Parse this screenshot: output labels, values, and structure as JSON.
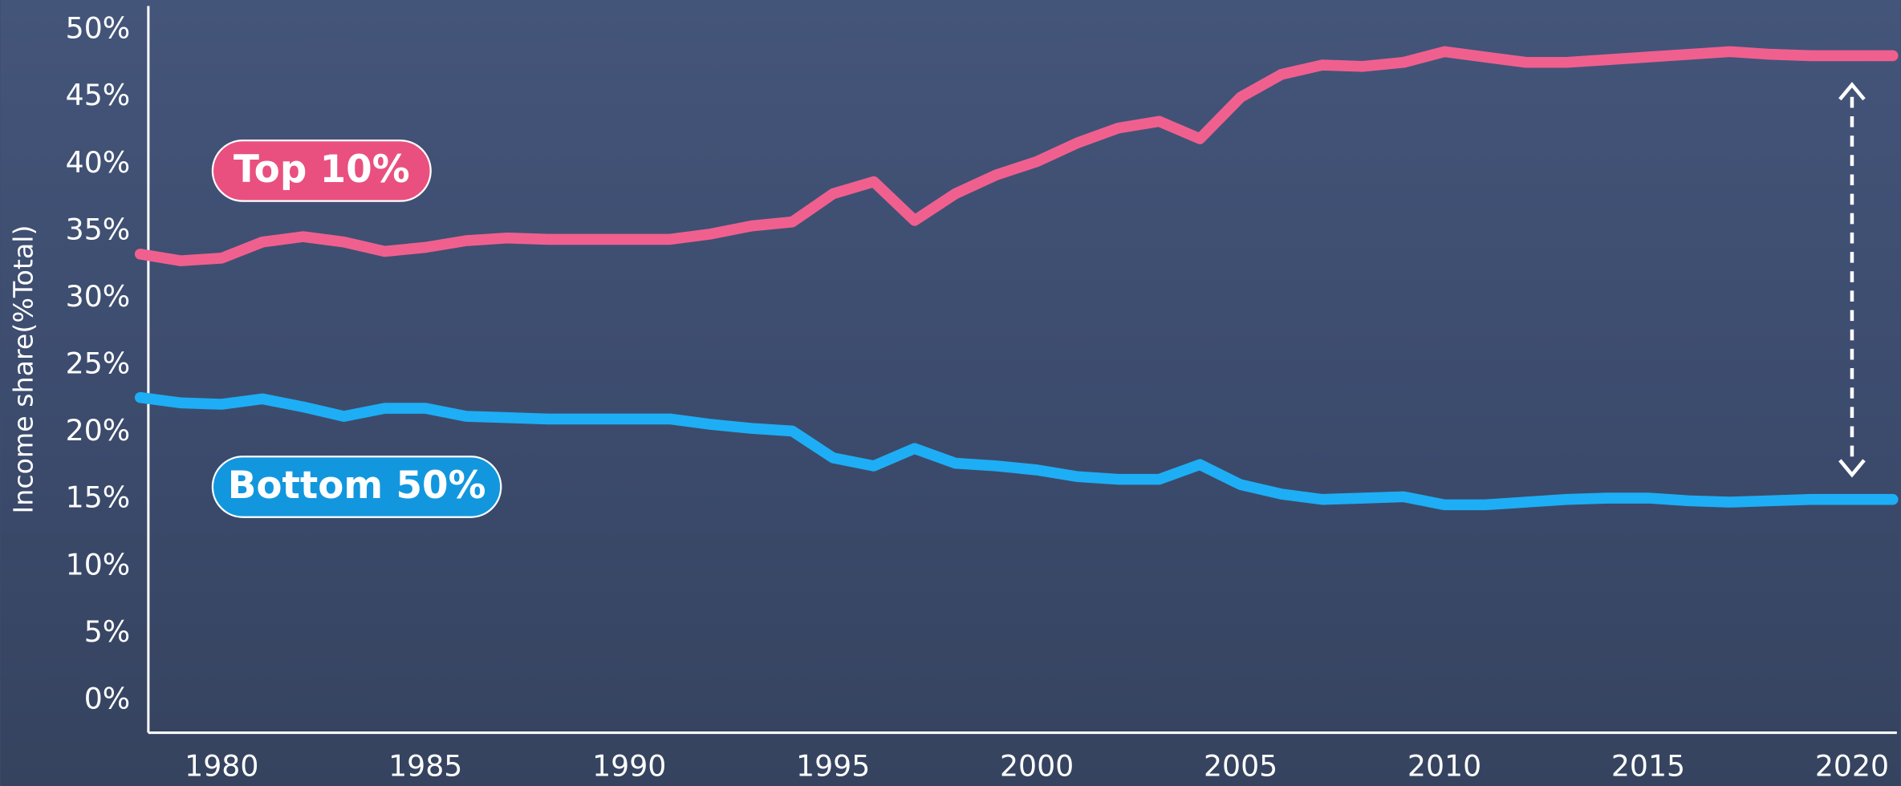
{
  "chart_data": {
    "type": "line",
    "y_label": "Income share(%Total)",
    "x": [
      1978,
      1979,
      1980,
      1981,
      1982,
      1983,
      1984,
      1985,
      1986,
      1987,
      1988,
      1989,
      1990,
      1991,
      1992,
      1993,
      1994,
      1995,
      1996,
      1997,
      1998,
      1999,
      2000,
      2001,
      2002,
      2003,
      2004,
      2005,
      2006,
      2007,
      2008,
      2009,
      2010,
      2011,
      2012,
      2013,
      2014,
      2015,
      2016,
      2017,
      2018,
      2019,
      2020,
      2021
    ],
    "series": [
      {
        "name": "Top 10%",
        "color": "#f0608f",
        "values": [
          33.3,
          32.8,
          33.0,
          34.2,
          34.6,
          34.2,
          33.5,
          33.8,
          34.3,
          34.5,
          34.4,
          34.4,
          34.4,
          34.4,
          34.8,
          35.4,
          35.7,
          37.8,
          38.7,
          35.8,
          37.8,
          39.2,
          40.2,
          41.6,
          42.7,
          43.2,
          41.9,
          45.0,
          46.7,
          47.4,
          47.3,
          47.6,
          48.4,
          48.0,
          47.6,
          47.6,
          47.8,
          48.0,
          48.2,
          48.4,
          48.2,
          48.1,
          48.1,
          48.1
        ]
      },
      {
        "name": "Bottom 50%",
        "color": "#1eaef5",
        "values": [
          22.6,
          22.2,
          22.1,
          22.5,
          21.9,
          21.2,
          21.8,
          21.8,
          21.2,
          21.1,
          21.0,
          21.0,
          21.0,
          21.0,
          20.6,
          20.3,
          20.1,
          18.1,
          17.5,
          18.8,
          17.7,
          17.5,
          17.2,
          16.7,
          16.5,
          16.5,
          17.6,
          16.1,
          15.4,
          15.0,
          15.1,
          15.2,
          14.6,
          14.6,
          14.8,
          15.0,
          15.1,
          15.1,
          14.9,
          14.8,
          14.9,
          15.0,
          15.0,
          15.0
        ]
      }
    ],
    "xlim": [
      1978.2,
      2021.1
    ],
    "xticks": [
      1980,
      1985,
      1990,
      1995,
      2000,
      2005,
      2010,
      2015,
      2020
    ],
    "ylim": [
      -2.4,
      51.8
    ],
    "yticks": [
      {
        "value": 0,
        "label": "0%"
      },
      {
        "value": 5,
        "label": "5%"
      },
      {
        "value": 10,
        "label": "10%"
      },
      {
        "value": 15,
        "label": "15%"
      },
      {
        "value": 20,
        "label": "20%"
      },
      {
        "value": 25,
        "label": "25%"
      },
      {
        "value": 30,
        "label": "30%"
      },
      {
        "value": 35,
        "label": "35%"
      },
      {
        "value": 40,
        "label": "40%"
      },
      {
        "value": 45,
        "label": "45%"
      },
      {
        "value": 50,
        "label": "50%"
      }
    ],
    "grid": false
  }
}
